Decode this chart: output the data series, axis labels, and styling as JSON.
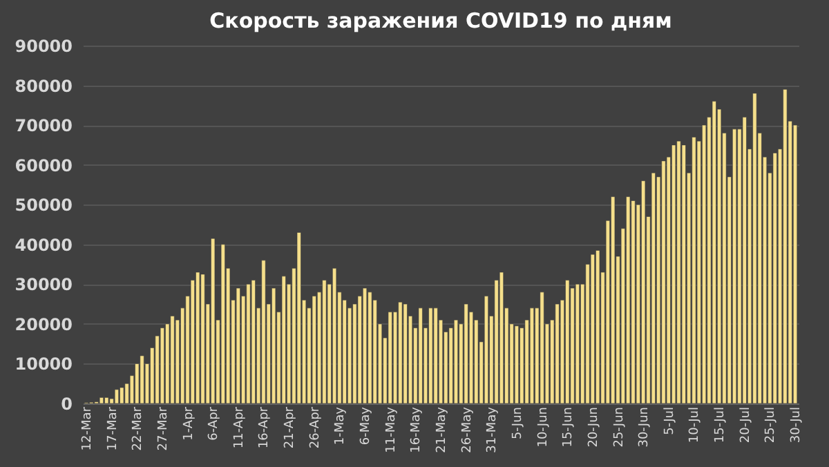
{
  "chart_data": {
    "type": "bar",
    "title": "Скорость заражения COVID19 по дням",
    "categories": [
      "12-Mar",
      null,
      null,
      null,
      null,
      "17-Mar",
      null,
      null,
      null,
      null,
      "22-Mar",
      null,
      null,
      null,
      null,
      "27-Mar",
      null,
      null,
      null,
      null,
      "1-Apr",
      null,
      null,
      null,
      null,
      "6-Apr",
      null,
      null,
      null,
      null,
      "11-Apr",
      null,
      null,
      null,
      null,
      "16-Apr",
      null,
      null,
      null,
      null,
      "21-Apr",
      null,
      null,
      null,
      null,
      "26-Apr",
      null,
      null,
      null,
      null,
      "1-May",
      null,
      null,
      null,
      null,
      "6-May",
      null,
      null,
      null,
      null,
      "11-May",
      null,
      null,
      null,
      null,
      "16-May",
      null,
      null,
      null,
      null,
      "21-May",
      null,
      null,
      null,
      null,
      "26-May",
      null,
      null,
      null,
      null,
      "31-May",
      null,
      null,
      null,
      null,
      "5-Jun",
      null,
      null,
      null,
      null,
      "10-Jun",
      null,
      null,
      null,
      null,
      "15-Jun",
      null,
      null,
      null,
      null,
      "20-Jun",
      null,
      null,
      null,
      null,
      "25-Jun",
      null,
      null,
      null,
      null,
      "30-Jun",
      null,
      null,
      null,
      null,
      "5-Jul",
      null,
      null,
      null,
      null,
      "10-Jul",
      null,
      null,
      null,
      null,
      "15-Jul",
      null,
      null,
      null,
      null,
      "20-Jul",
      null,
      null,
      null,
      null,
      "25-Jul",
      null,
      null,
      null,
      null,
      "30-Jul"
    ],
    "values": [
      200,
      300,
      400,
      1500,
      1500,
      1200,
      3500,
      4000,
      5000,
      7000,
      10000,
      12000,
      10000,
      14000,
      17000,
      19000,
      20000,
      22000,
      21000,
      24000,
      27000,
      31000,
      33000,
      32500,
      25000,
      41500,
      21000,
      40000,
      34000,
      26000,
      29000,
      27000,
      30000,
      31000,
      24000,
      36000,
      25000,
      29000,
      23000,
      32000,
      30000,
      34000,
      43000,
      26000,
      24000,
      27000,
      28000,
      31000,
      30000,
      34000,
      28000,
      26000,
      24000,
      25000,
      27000,
      29000,
      28000,
      26000,
      20000,
      16500,
      23000,
      23000,
      25500,
      25000,
      22000,
      19000,
      24000,
      19000,
      24000,
      24000,
      21000,
      18000,
      19000,
      21000,
      20000,
      25000,
      23000,
      21000,
      15500,
      27000,
      22000,
      31000,
      33000,
      24000,
      20000,
      19500,
      19000,
      21000,
      24000,
      24000,
      28000,
      20000,
      21000,
      25000,
      26000,
      31000,
      29000,
      30000,
      30000,
      35000,
      37500,
      38500,
      33000,
      46000,
      52000,
      37000,
      44000,
      52000,
      51000,
      50000,
      56000,
      47000,
      58000,
      57000,
      61000,
      62000,
      65000,
      66000,
      65000,
      58000,
      67000,
      66000,
      70000,
      72000,
      76000,
      74000,
      68000,
      57000,
      69000,
      69000,
      72000,
      64000,
      78000,
      68000,
      62000,
      58000,
      63000,
      64000,
      79000,
      71000,
      70000
    ],
    "color": "#f5df8b",
    "ylim": [
      0,
      90000
    ],
    "yticks": [
      0,
      10000,
      20000,
      30000,
      40000,
      50000,
      60000,
      70000,
      80000,
      90000
    ],
    "grid": "y"
  }
}
